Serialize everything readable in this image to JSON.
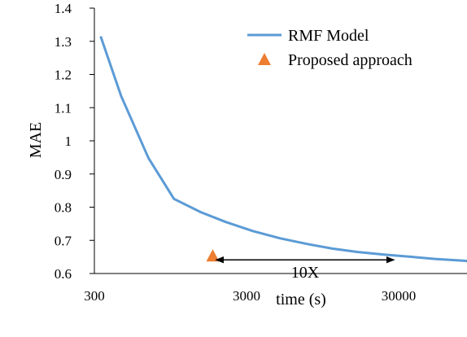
{
  "chart_data": {
    "type": "line",
    "xlabel": "time (s)",
    "ylabel": "MAE",
    "x_scale": "log",
    "xlim": [
      300,
      110000
    ],
    "ylim": [
      0.6,
      1.4
    ],
    "x_ticks": [
      {
        "value": 300,
        "label": "300"
      },
      {
        "value": 3000,
        "label": "3000"
      },
      {
        "value": 30000,
        "label": "30000"
      }
    ],
    "y_ticks": [
      {
        "value": 0.6,
        "label": "0.6"
      },
      {
        "value": 0.7,
        "label": "0.7"
      },
      {
        "value": 0.8,
        "label": "0.8"
      },
      {
        "value": 0.9,
        "label": "0.9"
      },
      {
        "value": 1.0,
        "label": "1"
      },
      {
        "value": 1.1,
        "label": "1.1"
      },
      {
        "value": 1.2,
        "label": "1.2"
      },
      {
        "value": 1.3,
        "label": "1.3"
      },
      {
        "value": 1.4,
        "label": "1.4"
      }
    ],
    "series": [
      {
        "name": "RMF Model",
        "type": "line",
        "color": "#5b9bd5",
        "x": [
          330,
          450,
          680,
          1000,
          1500,
          2200,
          3300,
          5000,
          7500,
          11000,
          16000,
          24000,
          35000,
          52000,
          78000,
          105000
        ],
        "y": [
          1.315,
          1.135,
          0.948,
          0.825,
          0.785,
          0.755,
          0.728,
          0.706,
          0.689,
          0.675,
          0.665,
          0.657,
          0.651,
          0.644,
          0.639,
          0.634
        ]
      },
      {
        "name": "Proposed approach",
        "type": "scatter",
        "marker": "triangle",
        "color": "#ed7d31",
        "x": [
          1800
        ],
        "y": [
          0.651
        ]
      }
    ],
    "annotations": [
      {
        "text": "10X",
        "arrow_from_x": 1800,
        "arrow_to_x": 28000,
        "y": 0.651
      }
    ],
    "legend_position": "top-right",
    "grid": false
  }
}
